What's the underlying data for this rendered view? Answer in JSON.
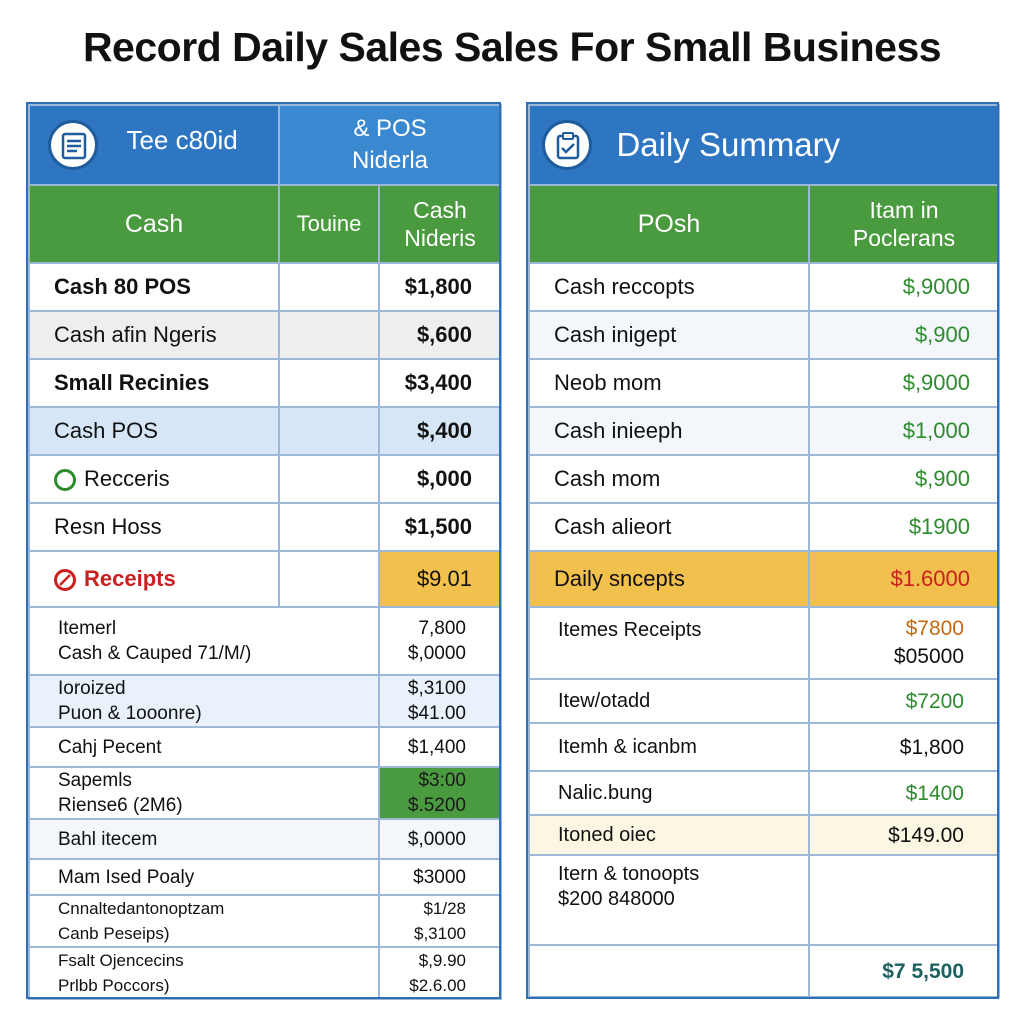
{
  "title": "Record Daily Sales Sales For Small Business",
  "colors": {
    "blue": "#2f76c2",
    "green": "#4a9a3f",
    "yellow": "#f2c04d",
    "red": "#c92020"
  },
  "left": {
    "header_title": "Tee c80id",
    "header_sub": "& POS Niderla",
    "icon": "receipt-icon",
    "cols": [
      "Cash",
      "Touine",
      "Cash Nideris"
    ],
    "rows": [
      {
        "label": "Cash 80 POS",
        "amount": "$1,800"
      },
      {
        "label": "Cash afin Ngeris",
        "amount": "$,600"
      },
      {
        "label": "Small Recinies",
        "amount": "$3,400"
      },
      {
        "label": "Cash POS",
        "amount": "$,400"
      },
      {
        "label": "Recceris",
        "amount": "$,000",
        "icon": "green-circle-icon"
      },
      {
        "label": "Resn Hoss",
        "amount": "$1,500"
      },
      {
        "label": "Receipts",
        "amount": "$9.01",
        "icon": "no-entry-icon"
      }
    ],
    "multi": [
      {
        "l1": "Itemerl",
        "l2": "Cash & Cauped 71/M/)",
        "a1": "7,800",
        "a2": "$,0000"
      },
      {
        "l1": "Ioroized",
        "l2": "Puon & 1ooonre)",
        "a1": "$,3100",
        "a2": "$41.00"
      },
      {
        "l1": "Cahj Pecent",
        "l2": "",
        "a1": "$1,400",
        "a2": ""
      },
      {
        "l1": "Sapemls",
        "l2": "Riense6 (2M6)",
        "a1": "$3:00",
        "a2": "$.5200"
      },
      {
        "l1": "Bahl itecem",
        "l2": "",
        "a1": "$,0000",
        "a2": ""
      },
      {
        "l1": "Mam Ised Poaly",
        "l2": "",
        "a1": "$3000",
        "a2": ""
      },
      {
        "l1": "Cnnaltedantonoptzam",
        "l2": "Canb Peseips)",
        "a1": "$1/28",
        "a2": "$,3100"
      },
      {
        "l1": "Fsalt Ojencecins",
        "l2": "Prlbb Poccors)",
        "a1": "$,9.90",
        "a2": "$2.6.00"
      }
    ]
  },
  "right": {
    "header_title": "Daily Summary",
    "icon": "clipboard-icon",
    "cols": [
      "POsh",
      "Itam in Poclerans"
    ],
    "rows": [
      {
        "label": "Cash reccopts",
        "amount": "$,9000"
      },
      {
        "label": "Cash inigept",
        "amount": "$,900"
      },
      {
        "label": "Neob mom",
        "amount": "$,9000"
      },
      {
        "label": "Cash inieeph",
        "amount": "$1,000"
      },
      {
        "label": "Cash mom",
        "amount": "$,900"
      },
      {
        "label": "Cash alieort",
        "amount": "$1900"
      },
      {
        "label": "Daily sncepts",
        "amount": "$1.6000"
      }
    ],
    "multi": [
      {
        "l1": "Itemes Receipts",
        "a1": "$7800",
        "a2": "$05000"
      },
      {
        "l1": "Itew/otadd",
        "a1": "$7200"
      },
      {
        "l1": "Itemh & icanbm",
        "a1": "$1,800"
      },
      {
        "l1": "Nalic.bung",
        "a1": "$1400"
      },
      {
        "l1": "Itoned oiec",
        "a1": "$149.00"
      },
      {
        "l1": "Itern & tonoopts",
        "l2": "$200 848000",
        "a1": ""
      }
    ],
    "total": "$7 5,500"
  }
}
